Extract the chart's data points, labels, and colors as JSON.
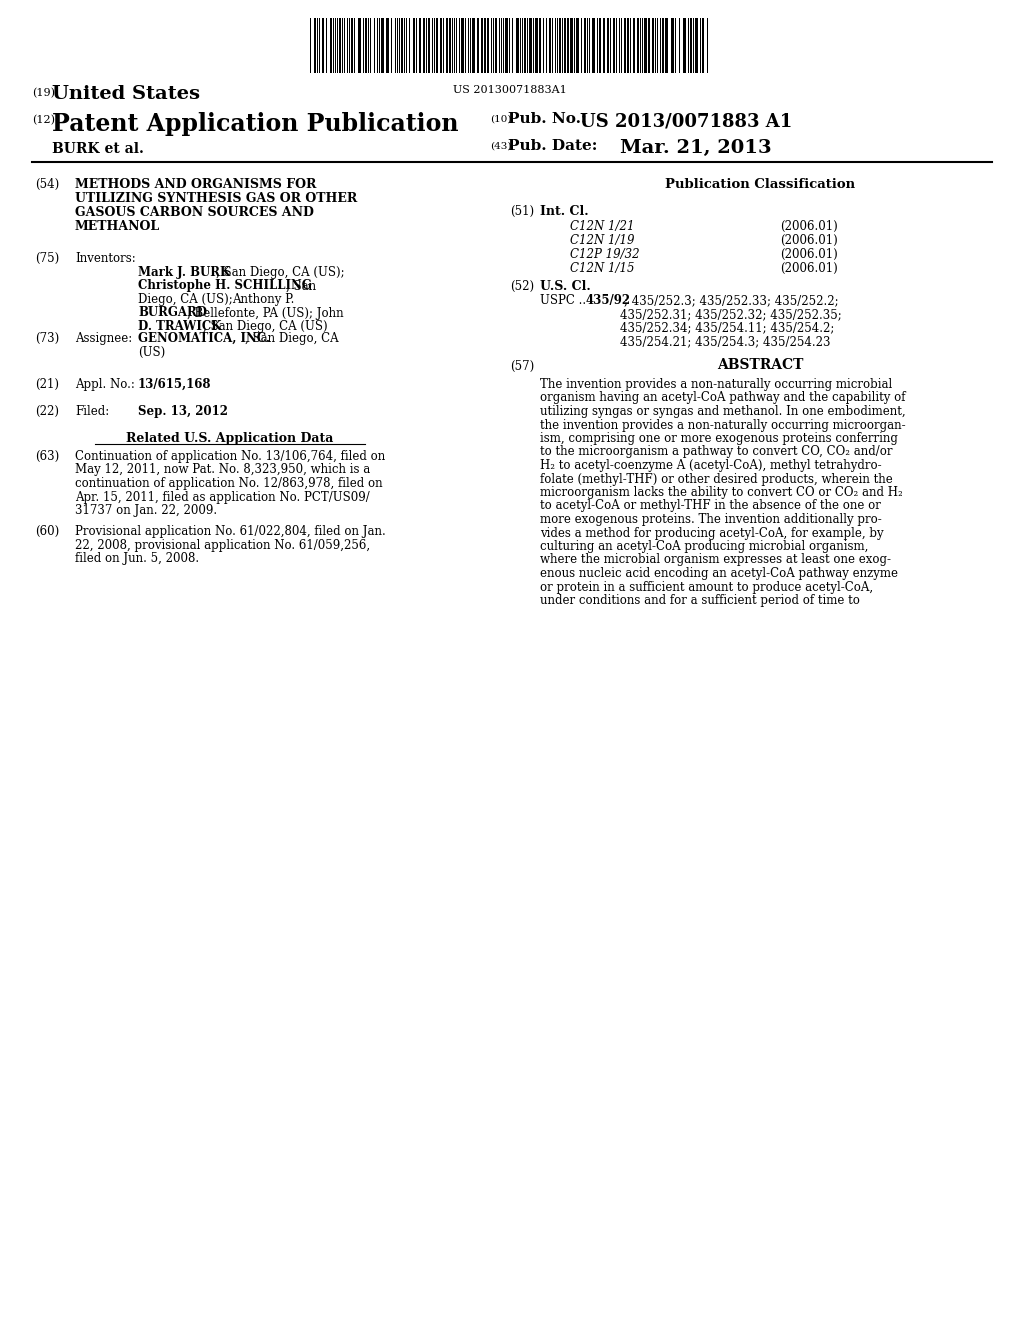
{
  "bg_color": "#ffffff",
  "barcode_text": "US 20130071883A1",
  "header_19": "(19)",
  "header_19_text": "United States",
  "header_12": "(12)",
  "header_12_text": "Patent Application Publication",
  "header_10": "(10)",
  "header_10_label": "Pub. No.:",
  "header_10_value": "US 2013/0071883 A1",
  "header_43": "(43)",
  "header_43_label": "Pub. Date:",
  "header_43_value": "Mar. 21, 2013",
  "burk": "BURK et al.",
  "field54_title": "METHODS AND ORGANISMS FOR\nUTILIZING SYNTHESIS GAS OR OTHER\nGASOUS CARBON SOURCES AND\nMETHANOL",
  "field21_value": "13/615,168",
  "field22_value": "Sep. 13, 2012",
  "related_header": "Related U.S. Application Data",
  "field63_text": "Continuation of application No. 13/106,764, filed on\nMay 12, 2011, now Pat. No. 8,323,950, which is a\ncontinuation of application No. 12/863,978, filed on\nApr. 15, 2011, filed as application No. PCT/US09/\n31737 on Jan. 22, 2009.",
  "field60_text": "Provisional application No. 61/022,804, filed on Jan.\n22, 2008, provisional application No. 61/059,256,\nfiled on Jun. 5, 2008.",
  "pub_class_header": "Publication Classification",
  "field51_rows": [
    [
      "C12N 1/21",
      "(2006.01)"
    ],
    [
      "C12N 1/19",
      "(2006.01)"
    ],
    [
      "C12P 19/32",
      "(2006.01)"
    ],
    [
      "C12N 1/15",
      "(2006.01)"
    ]
  ],
  "field52_bold": "435/92",
  "field52_line1": "; 435/252.3; 435/252.33; 435/252.2;",
  "field52_cont": [
    "435/252.31; 435/252.32; 435/252.35;",
    "435/252.34; 435/254.11; 435/254.2;",
    "435/254.21; 435/254.3; 435/254.23"
  ],
  "field57_label": "ABSTRACT",
  "field57_text": "The invention provides a non-naturally occurring microbial\norganism having an acetyl-CoA pathway and the capability of\nutilizing syngas or syngas and methanol. In one embodiment,\nthe invention provides a non-naturally occurring microorgan-\nism, comprising one or more exogenous proteins conferring\nto the microorganism a pathway to convert CO, CO₂ and/or\nH₂ to acetyl-coenzyme A (acetyl-CoA), methyl tetrahydro-\nfolate (methyl-THF) or other desired products, wherein the\nmicroorganism lacks the ability to convert CO or CO₂ and H₂\nto acetyl-CoA or methyl-THF in the absence of the one or\nmore exogenous proteins. The invention additionally pro-\nvides a method for producing acetyl-CoA, for example, by\nculturing an acetyl-CoA producing microbial organism,\nwhere the microbial organism expresses at least one exog-\nenous nucleic acid encoding an acetyl-CoA pathway enzyme\nor protein in a sufficient amount to produce acetyl-CoA,\nunder conditions and for a sufficient period of time to"
}
